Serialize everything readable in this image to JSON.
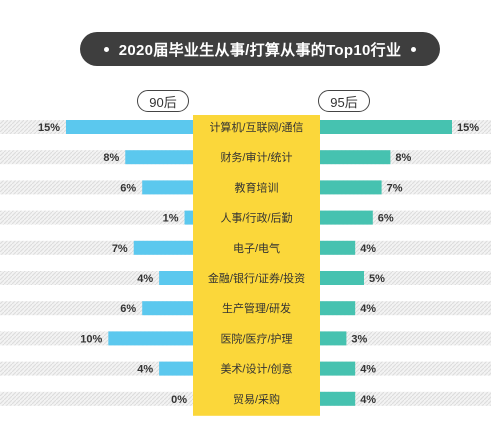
{
  "title": "2020届毕业生从事/打算从事的Top10行业",
  "chart_data": {
    "type": "bar",
    "layout": "butterfly",
    "title": "2020届毕业生从事/打算从事的Top10行业",
    "categories": [
      "计算机/互联网/通信",
      "财务/审计/统计",
      "教育培训",
      "人事/行政/后勤",
      "电子/电气",
      "金融/银行/证券/投资",
      "生产管理/研发",
      "医院/医疗/护理",
      "美术/设计/创意",
      "贸易/采购"
    ],
    "series": [
      {
        "name": "90后",
        "values": [
          15,
          8,
          6,
          1,
          7,
          4,
          6,
          10,
          4,
          0
        ],
        "labels": [
          "15%",
          "8%",
          "6%",
          "1%",
          "7%",
          "4%",
          "6%",
          "10%",
          "4%",
          "0%"
        ],
        "color": "#5bc8ee"
      },
      {
        "name": "95后",
        "values": [
          15,
          8,
          7,
          6,
          4,
          5,
          4,
          3,
          4,
          4
        ],
        "labels": [
          "15%",
          "8%",
          "7%",
          "6%",
          "4%",
          "5%",
          "4%",
          "3%",
          "4%",
          "4%"
        ],
        "color": "#46c2b0"
      }
    ],
    "center_color": "#fbd73a",
    "grid": false,
    "legend": "top"
  }
}
